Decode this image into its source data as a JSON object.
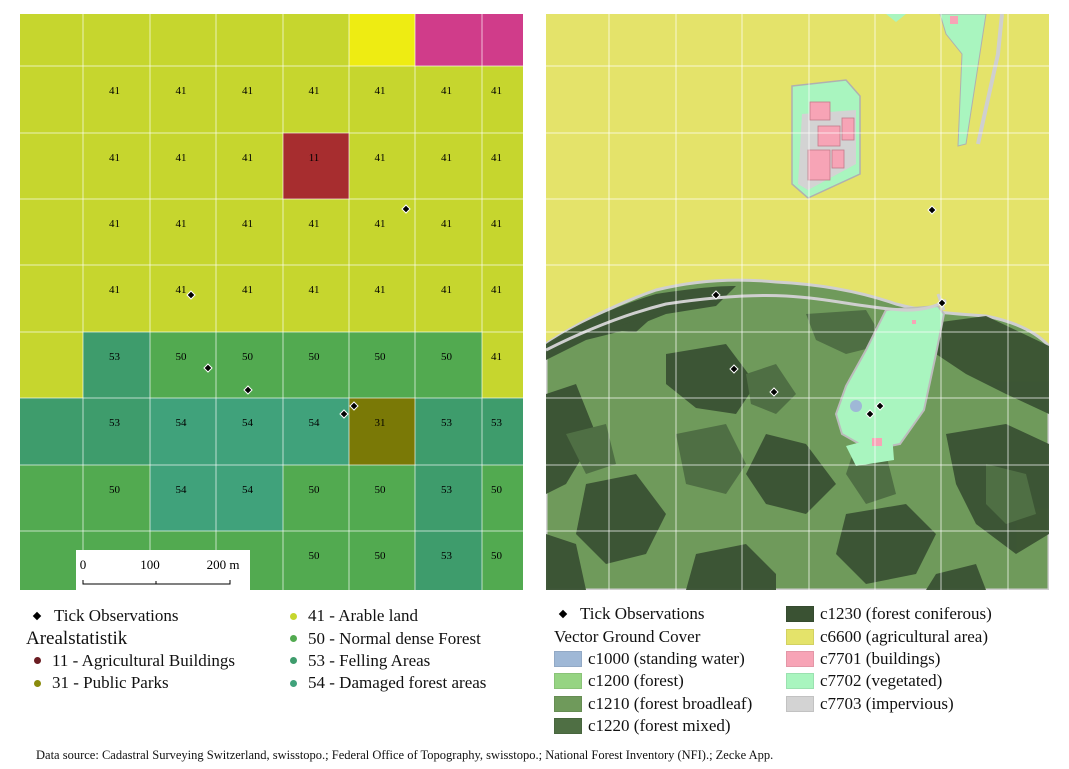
{
  "colors": {
    "c41": "#c6d62e",
    "c11": "#a72d2f",
    "c31": "#7a7906",
    "c50": "#52aa50",
    "c53": "#3e9c6c",
    "c54": "#40a27b",
    "yellow": "#eeec12",
    "magenta": "#d03c8a",
    "cover_water": "#9fb8d6",
    "cover_forest": "#96d483",
    "cover_broadleaf": "#6f9a5b",
    "cover_mixed": "#4f6f44",
    "cover_coniferous": "#3a5233",
    "cover_agri": "#e4e36a",
    "cover_buildings": "#f7a4b6",
    "cover_vegetated": "#a9f5bf",
    "cover_impervious": "#d3d3d3"
  },
  "left_map": {
    "row_labels": [
      [
        "41",
        "41",
        "41",
        "41",
        "41",
        "41",
        "41"
      ],
      [
        "41",
        "41",
        "41",
        "11",
        "41",
        "41",
        "41"
      ],
      [
        "41",
        "41",
        "41",
        "41",
        "41",
        "41",
        "41"
      ],
      [
        "41",
        "41",
        "41",
        "41",
        "41",
        "41",
        "41"
      ],
      [
        "53",
        "50",
        "50",
        "50",
        "50",
        "50",
        "41"
      ],
      [
        "53",
        "54",
        "54",
        "54",
        "31",
        "53",
        "53"
      ],
      [
        "50",
        "54",
        "54",
        "50",
        "50",
        "53",
        "50"
      ],
      [
        "",
        "",
        "",
        "50",
        "50",
        "53",
        "50"
      ]
    ],
    "scalebar": {
      "labels": [
        "0",
        "100",
        "200 m"
      ]
    }
  },
  "legend_left": {
    "tick_label": "Tick Observations",
    "areal_title": "Arealstatistik",
    "areal_items": [
      {
        "label": "11 - Agricultural Buildings",
        "color": "#6b1d22"
      },
      {
        "label": "31 - Public Parks",
        "color": "#8a8b0c"
      }
    ],
    "areal_items2": [
      {
        "label": "41 - Arable land",
        "color": "#c6d62e"
      },
      {
        "label": "50 - Normal dense Forest",
        "color": "#52aa50"
      },
      {
        "label": "53 - Felling Areas",
        "color": "#3e9c6c"
      },
      {
        "label": "54 - Damaged forest areas",
        "color": "#40a27b"
      }
    ]
  },
  "legend_right": {
    "tick_label": "Tick Observations",
    "cover_title": "Vector Ground Cover",
    "cover_items": [
      {
        "label": "c1000 (standing water)",
        "color": "#9fb8d6"
      },
      {
        "label": "c1200 (forest)",
        "color": "#96d483"
      },
      {
        "label": "c1210 (forest broadleaf)",
        "color": "#6f9a5b"
      },
      {
        "label": "c1220 (forest mixed)",
        "color": "#4f6f44"
      }
    ],
    "cover_items2": [
      {
        "label": "c1230 (forest coniferous)",
        "color": "#3a5233"
      },
      {
        "label": "c6600 (agricultural area)",
        "color": "#e4e36a"
      },
      {
        "label": "c7701 (buildings)",
        "color": "#f7a4b6"
      },
      {
        "label": "c7702 (vegetated)",
        "color": "#a9f5bf"
      },
      {
        "label": "c7703 (impervious)",
        "color": "#d3d3d3"
      }
    ]
  },
  "source": "Data source: Cadastral Surveying Switzerland, swisstopo.; Federal Office of Topography, swisstopo.; National Forest Inventory (NFI).; Zecke App."
}
